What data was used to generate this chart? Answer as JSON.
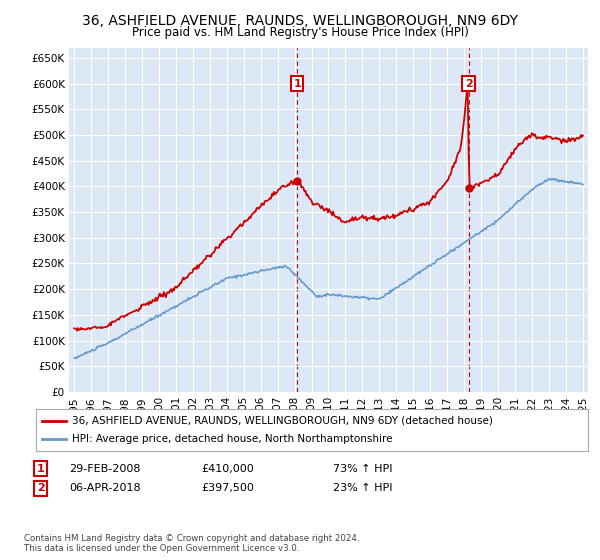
{
  "title": "36, ASHFIELD AVENUE, RAUNDS, WELLINGBOROUGH, NN9 6DY",
  "subtitle": "Price paid vs. HM Land Registry's House Price Index (HPI)",
  "xlim": [
    1994.7,
    2025.3
  ],
  "ylim": [
    0,
    670000
  ],
  "yticks": [
    0,
    50000,
    100000,
    150000,
    200000,
    250000,
    300000,
    350000,
    400000,
    450000,
    500000,
    550000,
    600000,
    650000
  ],
  "ytick_labels": [
    "£0",
    "£50K",
    "£100K",
    "£150K",
    "£200K",
    "£250K",
    "£300K",
    "£350K",
    "£400K",
    "£450K",
    "£500K",
    "£550K",
    "£600K",
    "£650K"
  ],
  "xticks": [
    1995,
    1996,
    1997,
    1998,
    1999,
    2000,
    2001,
    2002,
    2003,
    2004,
    2005,
    2006,
    2007,
    2008,
    2009,
    2010,
    2011,
    2012,
    2013,
    2014,
    2015,
    2016,
    2017,
    2018,
    2019,
    2020,
    2021,
    2022,
    2023,
    2024,
    2025
  ],
  "house_color": "#cc0000",
  "hpi_color": "#6699cc",
  "vline_color": "#cc0000",
  "sale1_x": 2008.15,
  "sale1_y": 410000,
  "sale1_label": "1",
  "sale2_x": 2018.27,
  "sale2_y": 397500,
  "sale2_label": "2",
  "legend_house": "36, ASHFIELD AVENUE, RAUNDS, WELLINGBOROUGH, NN9 6DY (detached house)",
  "legend_hpi": "HPI: Average price, detached house, North Northamptonshire",
  "annotation1_date": "29-FEB-2008",
  "annotation1_price": "£410,000",
  "annotation1_hpi": "73% ↑ HPI",
  "annotation2_date": "06-APR-2018",
  "annotation2_price": "£397,500",
  "annotation2_hpi": "23% ↑ HPI",
  "footer": "Contains HM Land Registry data © Crown copyright and database right 2024.\nThis data is licensed under the Open Government Licence v3.0.",
  "bg_color": "#ffffff",
  "plot_bg_color": "#dce8f5"
}
